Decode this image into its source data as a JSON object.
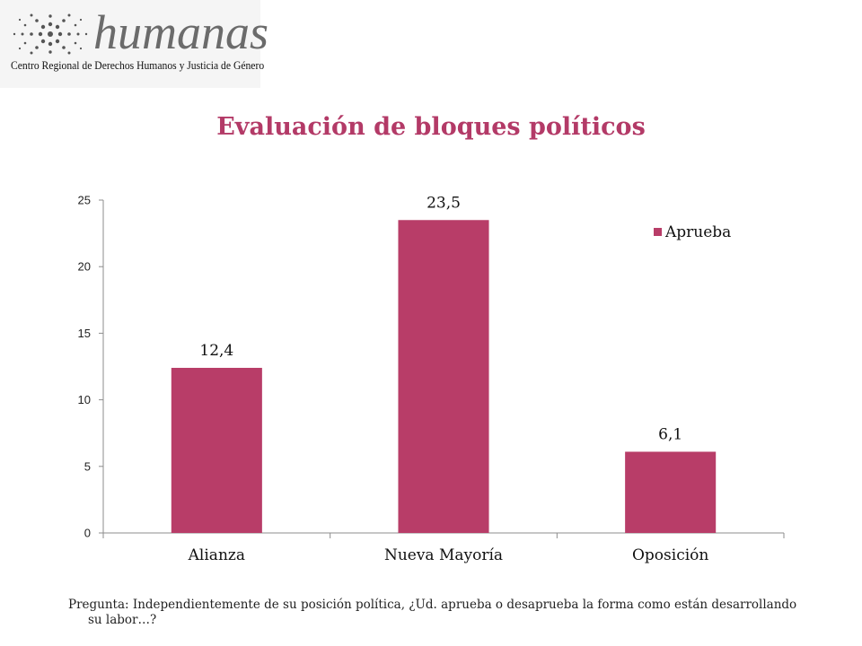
{
  "logo": {
    "wordmark": "humanas",
    "subtitle": "Centro Regional de Derechos Humanos y Justicia de Género"
  },
  "title": "Evaluación de bloques políticos",
  "chart_data": {
    "type": "bar",
    "categories": [
      "Alianza",
      "Nueva Mayoría",
      "Oposición"
    ],
    "series": [
      {
        "name": "Aprueba",
        "values": [
          12.4,
          23.5,
          6.1
        ],
        "labels": [
          "12,4",
          "23,5",
          "6,1"
        ],
        "color": "#b83d68"
      }
    ],
    "ylim": [
      0,
      25
    ],
    "yticks": [
      0,
      5,
      10,
      15,
      20,
      25
    ],
    "grid": false,
    "legend": "top-right"
  },
  "footnote": "Pregunta: Independientemente de su posición política, ¿Ud. aprueba o desaprueba la forma como están desarrollando su labor…?"
}
